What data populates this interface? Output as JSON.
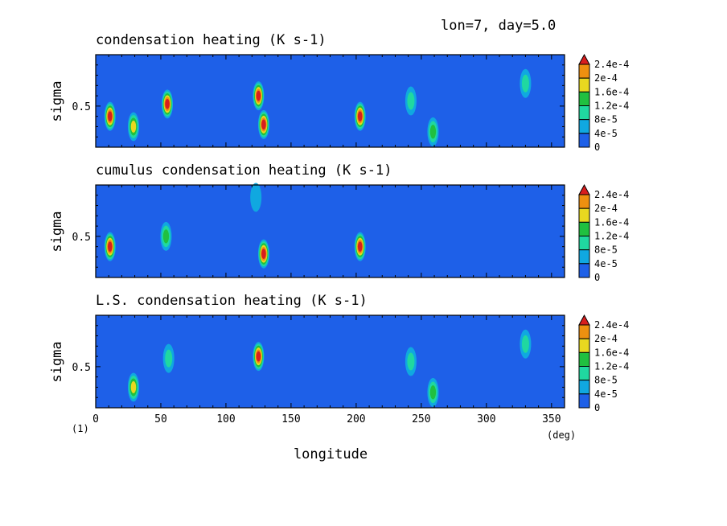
{
  "header": {
    "info": "lon=7, day=5.0"
  },
  "figure_note": "(1)",
  "colorbar": {
    "labels": [
      "2.4e-4",
      "2e-4",
      "1.6e-4",
      "1.2e-4",
      "8e-5",
      "4e-5",
      "0"
    ],
    "colors": [
      "#d81e1e",
      "#ee9010",
      "#e8d820",
      "#20c040",
      "#20d8a0",
      "#10a8e0",
      "#1e60e8"
    ]
  },
  "chart_data": [
    {
      "type": "heatmap",
      "title": "condensation heating (K s-1)",
      "xlabel": "longitude",
      "xunit": "(deg)",
      "ylabel": "sigma",
      "xticks": [
        "0",
        "50",
        "100",
        "150",
        "200",
        "250",
        "300",
        "350"
      ],
      "yticks": [
        "0.5"
      ],
      "xlim": [
        0,
        360
      ],
      "ylim": [
        0.1,
        1.0
      ],
      "levels": [
        0,
        4e-05,
        8e-05,
        0.00012,
        0.00016,
        0.0002,
        0.00024
      ],
      "features": [
        {
          "lon": 11,
          "sigma": 0.4,
          "value": 0.00024
        },
        {
          "lon": 29,
          "sigma": 0.3,
          "value": 0.00016
        },
        {
          "lon": 55,
          "sigma": 0.52,
          "value": 0.00024
        },
        {
          "lon": 125,
          "sigma": 0.6,
          "value": 0.00024
        },
        {
          "lon": 129,
          "sigma": 0.32,
          "value": 0.00024
        },
        {
          "lon": 203,
          "sigma": 0.4,
          "value": 0.00024
        },
        {
          "lon": 242,
          "sigma": 0.55,
          "value": 8e-05
        },
        {
          "lon": 259,
          "sigma": 0.25,
          "value": 0.00012
        },
        {
          "lon": 330,
          "sigma": 0.72,
          "value": 8e-05
        }
      ]
    },
    {
      "type": "heatmap",
      "title": "cumulus condensation heating (K s-1)",
      "xlabel": "longitude",
      "xunit": "(deg)",
      "ylabel": "sigma",
      "xticks": [
        "0",
        "50",
        "100",
        "150",
        "200",
        "250",
        "300",
        "350"
      ],
      "yticks": [
        "0.5"
      ],
      "xlim": [
        0,
        360
      ],
      "ylim": [
        0.1,
        1.0
      ],
      "levels": [
        0,
        4e-05,
        8e-05,
        0.00012,
        0.00016,
        0.0002,
        0.00024
      ],
      "features": [
        {
          "lon": 11,
          "sigma": 0.4,
          "value": 0.00024
        },
        {
          "lon": 54,
          "sigma": 0.5,
          "value": 0.00012
        },
        {
          "lon": 129,
          "sigma": 0.33,
          "value": 0.00024
        },
        {
          "lon": 203,
          "sigma": 0.4,
          "value": 0.00024
        },
        {
          "lon": 123,
          "sigma": 0.88,
          "value": 4e-05
        }
      ]
    },
    {
      "type": "heatmap",
      "title": "L.S. condensation heating (K s-1)",
      "xlabel": "longitude",
      "xunit": "(deg)",
      "ylabel": "sigma",
      "xticks": [
        "0",
        "50",
        "100",
        "150",
        "200",
        "250",
        "300",
        "350"
      ],
      "yticks": [
        "0.5"
      ],
      "xlim": [
        0,
        360
      ],
      "ylim": [
        0.1,
        1.0
      ],
      "levels": [
        0,
        4e-05,
        8e-05,
        0.00012,
        0.00016,
        0.0002,
        0.00024
      ],
      "features": [
        {
          "lon": 29,
          "sigma": 0.3,
          "value": 0.00016
        },
        {
          "lon": 56,
          "sigma": 0.58,
          "value": 8e-05
        },
        {
          "lon": 125,
          "sigma": 0.6,
          "value": 0.00024
        },
        {
          "lon": 242,
          "sigma": 0.55,
          "value": 8e-05
        },
        {
          "lon": 259,
          "sigma": 0.25,
          "value": 0.00012
        },
        {
          "lon": 330,
          "sigma": 0.72,
          "value": 8e-05
        }
      ]
    }
  ]
}
